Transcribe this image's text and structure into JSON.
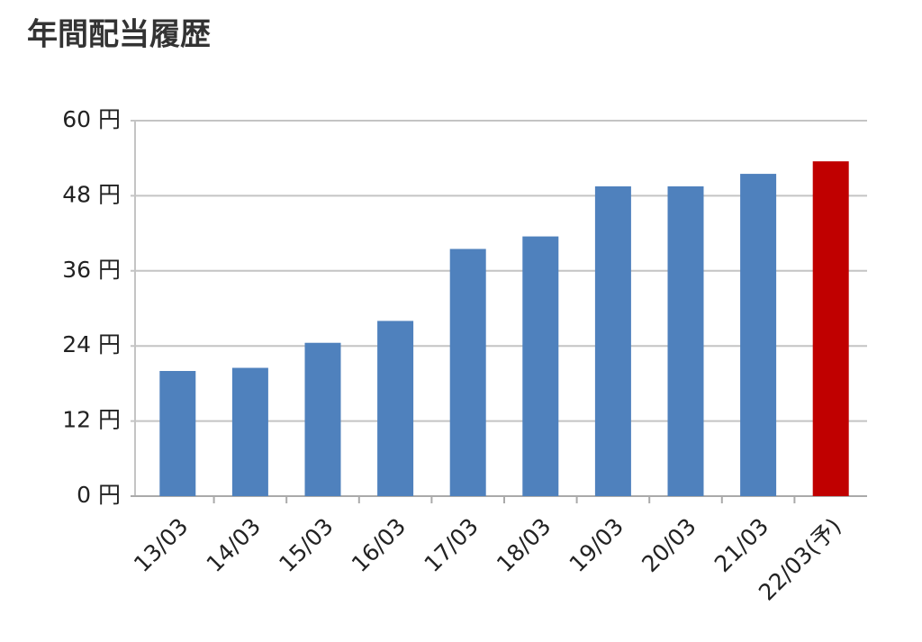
{
  "chart_data": {
    "type": "bar",
    "title": "年間配当履歴",
    "categories": [
      "13/03",
      "14/03",
      "15/03",
      "16/03",
      "17/03",
      "18/03",
      "19/03",
      "20/03",
      "21/03",
      "22/03(予)"
    ],
    "values": [
      20,
      20.5,
      24.5,
      28,
      39.5,
      41.5,
      49.5,
      49.5,
      51.5,
      53.5
    ],
    "colors": [
      "#4f81bd",
      "#4f81bd",
      "#4f81bd",
      "#4f81bd",
      "#4f81bd",
      "#4f81bd",
      "#4f81bd",
      "#4f81bd",
      "#4f81bd",
      "#c00000"
    ],
    "ylim": [
      0,
      60
    ],
    "yticks": [
      {
        "value": 0,
        "label": "0 円"
      },
      {
        "value": 12,
        "label": "12 円"
      },
      {
        "value": 24,
        "label": "24 円"
      },
      {
        "value": 36,
        "label": "36 円"
      },
      {
        "value": 48,
        "label": "48 円"
      },
      {
        "value": 60,
        "label": "60 円"
      }
    ],
    "grid": true
  }
}
